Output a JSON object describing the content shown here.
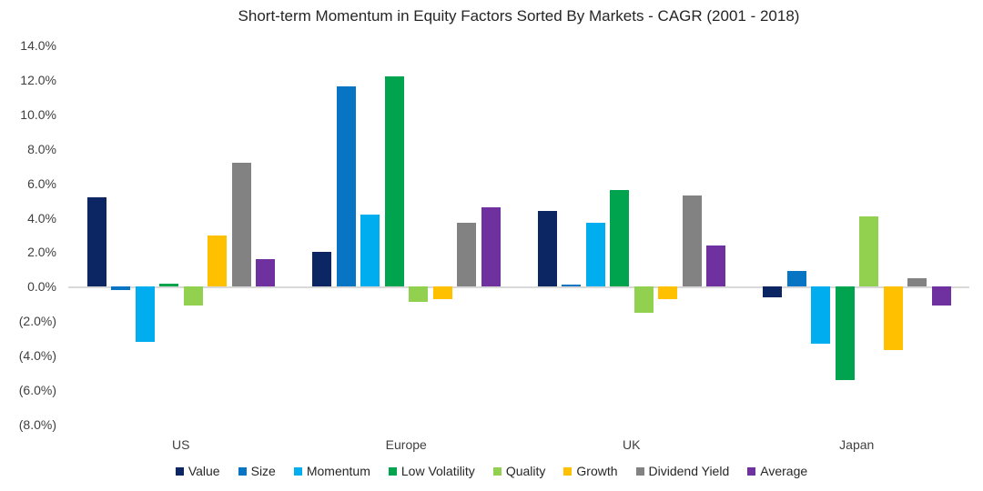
{
  "title": "Short-term Momentum in Equity Factors Sorted By Markets - CAGR (2001 - 2018)",
  "chart_data": {
    "type": "bar",
    "title": "Short-term Momentum in Equity Factors Sorted By Markets - CAGR (2001 - 2018)",
    "xlabel": "",
    "ylabel": "",
    "ylim": [
      -8,
      14
    ],
    "grid": false,
    "legend_position": "bottom",
    "value_unit": "%",
    "categories": [
      "US",
      "Europe",
      "UK",
      "Japan"
    ],
    "series": [
      {
        "name": "Value",
        "color": "#0C2663",
        "values": [
          5.2,
          2.0,
          4.4,
          -0.6
        ]
      },
      {
        "name": "Size",
        "color": "#0774C4",
        "values": [
          -0.2,
          11.6,
          0.1,
          0.9
        ]
      },
      {
        "name": "Momentum",
        "color": "#00AEEF",
        "values": [
          -3.2,
          4.2,
          3.7,
          -3.3
        ]
      },
      {
        "name": "Low Volatility",
        "color": "#00A44F",
        "values": [
          0.2,
          12.2,
          5.6,
          -5.4
        ]
      },
      {
        "name": "Quality",
        "color": "#92D050",
        "values": [
          -1.1,
          -0.9,
          -1.5,
          4.1
        ]
      },
      {
        "name": "Growth",
        "color": "#FFC000",
        "values": [
          3.0,
          -0.7,
          -0.7,
          -3.7
        ]
      },
      {
        "name": "Dividend Yield",
        "color": "#828282",
        "values": [
          7.2,
          3.7,
          5.3,
          0.5
        ]
      },
      {
        "name": "Average",
        "color": "#7031A0",
        "values": [
          1.6,
          4.6,
          2.4,
          -1.1
        ]
      }
    ],
    "y_ticks": [
      14,
      12,
      10,
      8,
      6,
      4,
      2,
      0,
      -2,
      -4,
      -6,
      -8
    ],
    "y_tick_labels": [
      "14.0%",
      "12.0%",
      "10.0%",
      "8.0%",
      "6.0%",
      "4.0%",
      "2.0%",
      "0.0%",
      "(2.0%)",
      "(4.0%)",
      "(6.0%)",
      "(8.0%)"
    ]
  },
  "colors": {
    "background": "#ffffff",
    "axis_line": "#d9d9d9",
    "text": "#404040",
    "title_text": "#262626"
  }
}
